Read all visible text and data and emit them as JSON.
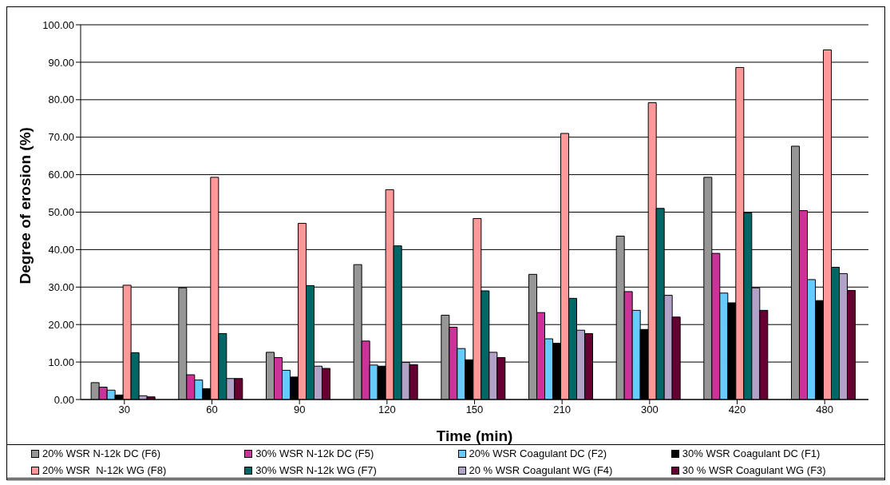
{
  "chart_data": {
    "type": "bar",
    "xlabel": "Time (min)",
    "ylabel": "Degree of erosion (%)",
    "categories": [
      "30",
      "60",
      "90",
      "120",
      "150",
      "210",
      "300",
      "420",
      "480"
    ],
    "series": [
      {
        "name": "20% WSR N-12k DC (F6)",
        "color": "#969696",
        "values": [
          4.5,
          29.8,
          12.6,
          36.0,
          22.5,
          33.4,
          43.6,
          59.3,
          67.6
        ]
      },
      {
        "name": "30% WSR N-12k DC (F5)",
        "color": "#cc3399",
        "values": [
          3.3,
          6.6,
          11.2,
          15.6,
          19.3,
          23.2,
          28.8,
          39.0,
          50.4
        ]
      },
      {
        "name": "20% WSR Coagulant DC (F2)",
        "color": "#66ccff",
        "values": [
          2.5,
          5.2,
          7.8,
          9.2,
          13.6,
          16.2,
          23.8,
          28.4,
          32.0
        ]
      },
      {
        "name": "30% WSR Coagulant DC (F1)",
        "color": "#000000",
        "values": [
          1.2,
          2.9,
          6.0,
          8.9,
          10.6,
          15.0,
          18.7,
          25.8,
          26.4
        ]
      },
      {
        "name": "20% WSR  N-12k WG (F8)",
        "color": "#ff9999",
        "values": [
          30.5,
          59.3,
          47.0,
          56.0,
          48.3,
          71.0,
          79.2,
          88.6,
          93.3
        ]
      },
      {
        "name": "30% WSR N-12k WG (F7)",
        "color": "#006666",
        "values": [
          12.5,
          17.6,
          30.4,
          41.0,
          29.0,
          27.0,
          51.0,
          49.8,
          35.3
        ]
      },
      {
        "name": "20 % WSR Coagulant WG (F4)",
        "color": "#b3a2c7",
        "values": [
          1.0,
          5.6,
          8.9,
          9.9,
          12.6,
          18.5,
          27.8,
          29.8,
          33.6
        ]
      },
      {
        "name": "30 % WSR Coagulant WG (F3)",
        "color": "#660033",
        "values": [
          0.7,
          5.6,
          8.3,
          9.3,
          11.2,
          17.6,
          22.0,
          23.8,
          29.1
        ]
      }
    ],
    "ylim": [
      0,
      100
    ],
    "yticks": [
      {
        "value": 0,
        "label": "0.00"
      },
      {
        "value": 10,
        "label": "10.00"
      },
      {
        "value": 20,
        "label": "20.00"
      },
      {
        "value": 30,
        "label": "30.00"
      },
      {
        "value": 40,
        "label": "40.00"
      },
      {
        "value": 50,
        "label": "50.00"
      },
      {
        "value": 60,
        "label": "60.00"
      },
      {
        "value": 70,
        "label": "70.00"
      },
      {
        "value": 80,
        "label": "80.00"
      },
      {
        "value": 90,
        "label": "90.00"
      },
      {
        "value": 100,
        "label": "100.00"
      }
    ],
    "grid": "y",
    "legend": "bottom"
  }
}
